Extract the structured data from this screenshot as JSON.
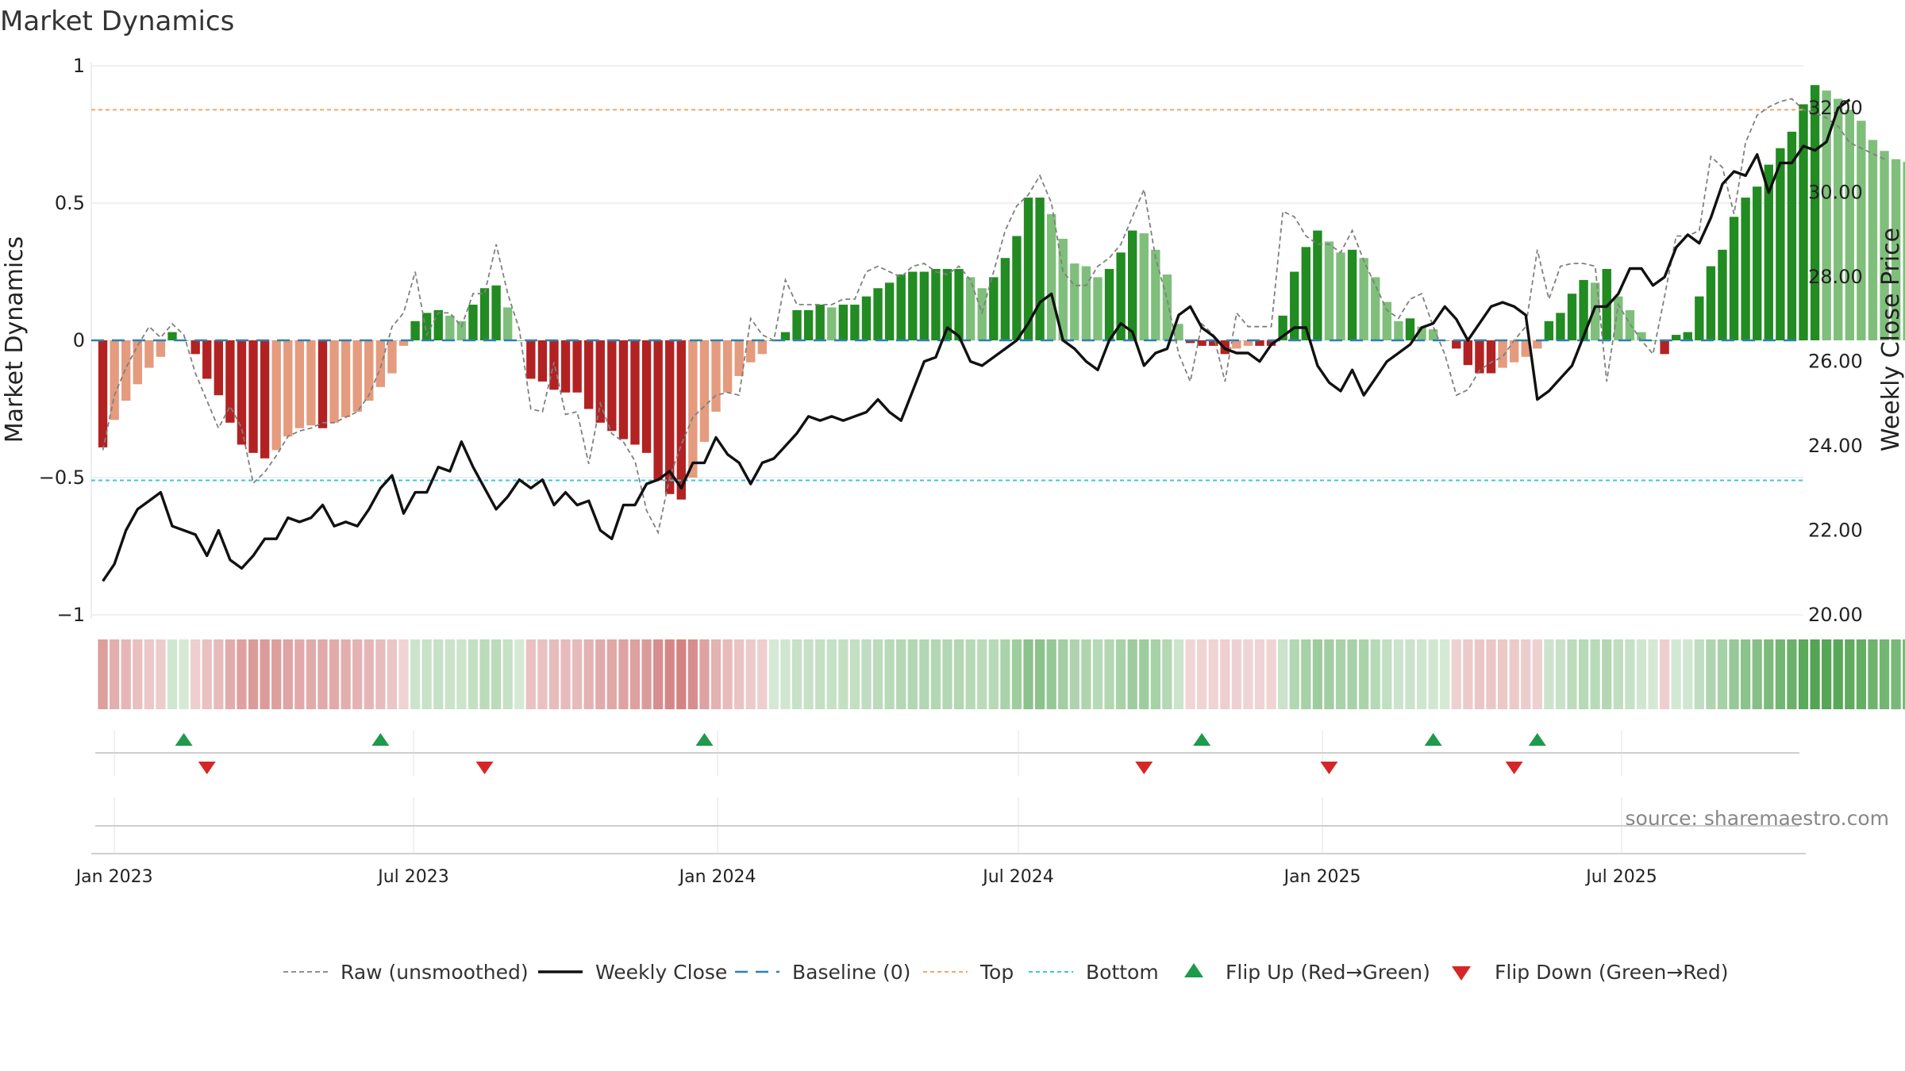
{
  "chart_data": {
    "type": "bar",
    "title": "Market Dynamics",
    "ylabel": "Market Dynamics",
    "y2label": "Weekly Close Price",
    "ylim": [
      -1,
      1
    ],
    "y2lim": [
      20,
      33
    ],
    "y_ticks": [
      "1",
      "0.5",
      "0",
      "−0.5",
      "−1"
    ],
    "y2_ticks": [
      "20.00",
      "22.00",
      "24.00",
      "26.00",
      "28.00",
      "30.00",
      "32.00"
    ],
    "x_ticks": [
      "Jan 2023",
      "Jul 2023",
      "Jan 2024",
      "Jul 2024",
      "Jan 2025",
      "Jul 2025"
    ],
    "x_tick_dates": [
      "2023-01-01",
      "2023-07-01",
      "2024-01-01",
      "2024-07-01",
      "2025-01-01",
      "2025-07-01"
    ],
    "x_range": [
      "2022-12-18",
      "2025-10-19"
    ],
    "first_week": "2022-12-25",
    "week_days": 7,
    "top_level": 0.84,
    "bottom_level": -0.51,
    "baseline": 0,
    "smoothed": [
      -0.39,
      -0.29,
      -0.22,
      -0.16,
      -0.1,
      -0.06,
      0.03,
      0.0,
      -0.05,
      -0.14,
      -0.2,
      -0.3,
      -0.38,
      -0.41,
      -0.43,
      -0.4,
      -0.35,
      -0.32,
      -0.31,
      -0.32,
      -0.3,
      -0.28,
      -0.26,
      -0.22,
      -0.17,
      -0.12,
      -0.02,
      0.07,
      0.1,
      0.11,
      0.09,
      0.07,
      0.13,
      0.19,
      0.2,
      0.12,
      0.0,
      -0.14,
      -0.15,
      -0.18,
      -0.19,
      -0.19,
      -0.25,
      -0.3,
      -0.33,
      -0.36,
      -0.38,
      -0.41,
      -0.51,
      -0.56,
      -0.58,
      -0.5,
      -0.37,
      -0.26,
      -0.19,
      -0.13,
      -0.08,
      -0.05,
      0.0,
      0.03,
      0.11,
      0.11,
      0.13,
      0.12,
      0.13,
      0.13,
      0.16,
      0.19,
      0.21,
      0.24,
      0.25,
      0.25,
      0.26,
      0.26,
      0.26,
      0.23,
      0.19,
      0.23,
      0.3,
      0.38,
      0.52,
      0.52,
      0.46,
      0.37,
      0.28,
      0.27,
      0.23,
      0.26,
      0.32,
      0.4,
      0.39,
      0.33,
      0.24,
      0.06,
      -0.01,
      -0.02,
      -0.02,
      -0.05,
      -0.03,
      -0.02,
      -0.02,
      -0.02,
      0.09,
      0.25,
      0.34,
      0.4,
      0.36,
      0.32,
      0.33,
      0.3,
      0.23,
      0.14,
      0.07,
      0.08,
      0.05,
      0.04,
      0.0,
      -0.03,
      -0.09,
      -0.12,
      -0.12,
      -0.1,
      -0.08,
      -0.06,
      -0.03,
      0.07,
      0.1,
      0.17,
      0.22,
      0.21,
      0.26,
      0.16,
      0.11,
      0.03,
      0.0,
      -0.05,
      0.02,
      0.03,
      0.16,
      0.27,
      0.33,
      0.45,
      0.52,
      0.56,
      0.64,
      0.7,
      0.76,
      0.86,
      0.93,
      0.91,
      0.88,
      0.84,
      0.8,
      0.73,
      0.69,
      0.66,
      0.65
    ],
    "raw": [
      -0.4,
      -0.2,
      -0.1,
      -0.02,
      0.05,
      0.01,
      0.06,
      0.02,
      -0.12,
      -0.22,
      -0.32,
      -0.24,
      -0.32,
      -0.52,
      -0.48,
      -0.42,
      -0.35,
      -0.33,
      -0.32,
      -0.3,
      -0.3,
      -0.28,
      -0.26,
      -0.2,
      -0.1,
      0.05,
      0.1,
      0.25,
      0.02,
      0.1,
      0.1,
      0.05,
      0.17,
      0.17,
      0.35,
      0.17,
      0.04,
      -0.25,
      -0.26,
      -0.08,
      -0.27,
      -0.26,
      -0.45,
      -0.23,
      -0.34,
      -0.37,
      -0.44,
      -0.62,
      -0.7,
      -0.5,
      -0.38,
      -0.28,
      -0.24,
      -0.2,
      -0.19,
      -0.2,
      0.08,
      0.02,
      0.0,
      0.22,
      0.13,
      0.13,
      0.13,
      0.13,
      0.15,
      0.15,
      0.25,
      0.27,
      0.25,
      0.23,
      0.27,
      0.28,
      0.25,
      0.24,
      0.27,
      0.22,
      0.1,
      0.25,
      0.4,
      0.49,
      0.53,
      0.6,
      0.5,
      0.25,
      0.2,
      0.2,
      0.27,
      0.3,
      0.35,
      0.45,
      0.55,
      0.3,
      0.15,
      -0.05,
      -0.15,
      0.06,
      0.02,
      -0.15,
      0.1,
      0.05,
      0.05,
      0.05,
      0.47,
      0.45,
      0.38,
      0.35,
      0.35,
      0.32,
      0.4,
      0.29,
      0.2,
      0.11,
      0.08,
      0.15,
      0.17,
      0.05,
      -0.05,
      -0.2,
      -0.18,
      -0.11,
      -0.08,
      -0.06,
      0.0,
      0.05,
      0.33,
      0.15,
      0.27,
      0.28,
      0.28,
      0.27,
      -0.15,
      0.13,
      0.06,
      0.0,
      -0.05,
      0.16,
      0.38,
      0.38,
      0.4,
      0.67,
      0.63,
      0.46,
      0.72,
      0.82,
      0.85,
      0.87,
      0.88,
      0.84,
      0.83,
      0.81,
      0.78,
      0.72,
      0.7,
      0.68,
      0.66
    ],
    "close": [
      20.8,
      21.2,
      22.0,
      22.5,
      22.7,
      22.9,
      22.1,
      22.0,
      21.9,
      21.4,
      22.0,
      21.3,
      21.1,
      21.4,
      21.8,
      21.8,
      22.3,
      22.2,
      22.3,
      22.6,
      22.1,
      22.2,
      22.1,
      22.5,
      23.0,
      23.3,
      22.4,
      22.9,
      22.9,
      23.5,
      23.4,
      24.1,
      23.5,
      23.0,
      22.5,
      22.8,
      23.2,
      23.0,
      23.2,
      22.6,
      22.9,
      22.6,
      22.7,
      22.0,
      21.8,
      22.6,
      22.6,
      23.1,
      23.2,
      23.4,
      23.0,
      23.6,
      23.6,
      24.2,
      23.8,
      23.6,
      23.1,
      23.6,
      23.7,
      24.0,
      24.3,
      24.7,
      24.6,
      24.7,
      24.6,
      24.7,
      24.8,
      25.1,
      24.8,
      24.6,
      25.3,
      26.0,
      26.1,
      26.8,
      26.6,
      26.0,
      25.9,
      26.1,
      26.3,
      26.5,
      26.9,
      27.4,
      27.6,
      26.5,
      26.3,
      26.0,
      25.8,
      26.5,
      26.9,
      26.7,
      25.9,
      26.2,
      26.3,
      27.1,
      27.3,
      26.8,
      26.6,
      26.3,
      26.2,
      26.2,
      26.0,
      26.4,
      26.6,
      26.8,
      26.8,
      25.9,
      25.5,
      25.3,
      25.8,
      25.2,
      25.6,
      26.0,
      26.2,
      26.4,
      26.8,
      26.9,
      27.3,
      27.0,
      26.5,
      26.9,
      27.3,
      27.4,
      27.3,
      27.1,
      25.1,
      25.3,
      25.6,
      25.9,
      26.6,
      27.3,
      27.3,
      27.6,
      28.2,
      28.2,
      27.8,
      28.0,
      28.7,
      29.0,
      28.8,
      29.4,
      30.2,
      30.5,
      30.4,
      30.9,
      30.0,
      30.7,
      30.7,
      31.1,
      31.0,
      31.2,
      32.0,
      32.2
    ],
    "flips_up": [
      "2023-02-12",
      "2023-06-11",
      "2023-12-24",
      "2024-10-20",
      "2025-03-09",
      "2025-05-11"
    ],
    "flips_down": [
      "2023-02-26",
      "2023-08-13",
      "2024-09-15",
      "2025-01-05",
      "2025-04-27"
    ],
    "source": "source: sharemaestro.com",
    "legend": [
      "Raw (unsmoothed)",
      "Weekly Close",
      "Baseline (0)",
      "Top",
      "Bottom",
      "Flip Up (Red→Green)",
      "Flip Down (Green→Red)"
    ],
    "colors": {
      "strong_up": "#228b22",
      "weak_up": "#7fbf7b",
      "strong_down": "#b22222",
      "weak_down": "#e49b7e",
      "raw": "#808080",
      "close": "#111111",
      "baseline": "#2f7fb4",
      "top": "#f0a868",
      "bottom": "#3cc6e0",
      "flip_up": "#1e9a4a",
      "flip_down": "#d62728"
    }
  }
}
